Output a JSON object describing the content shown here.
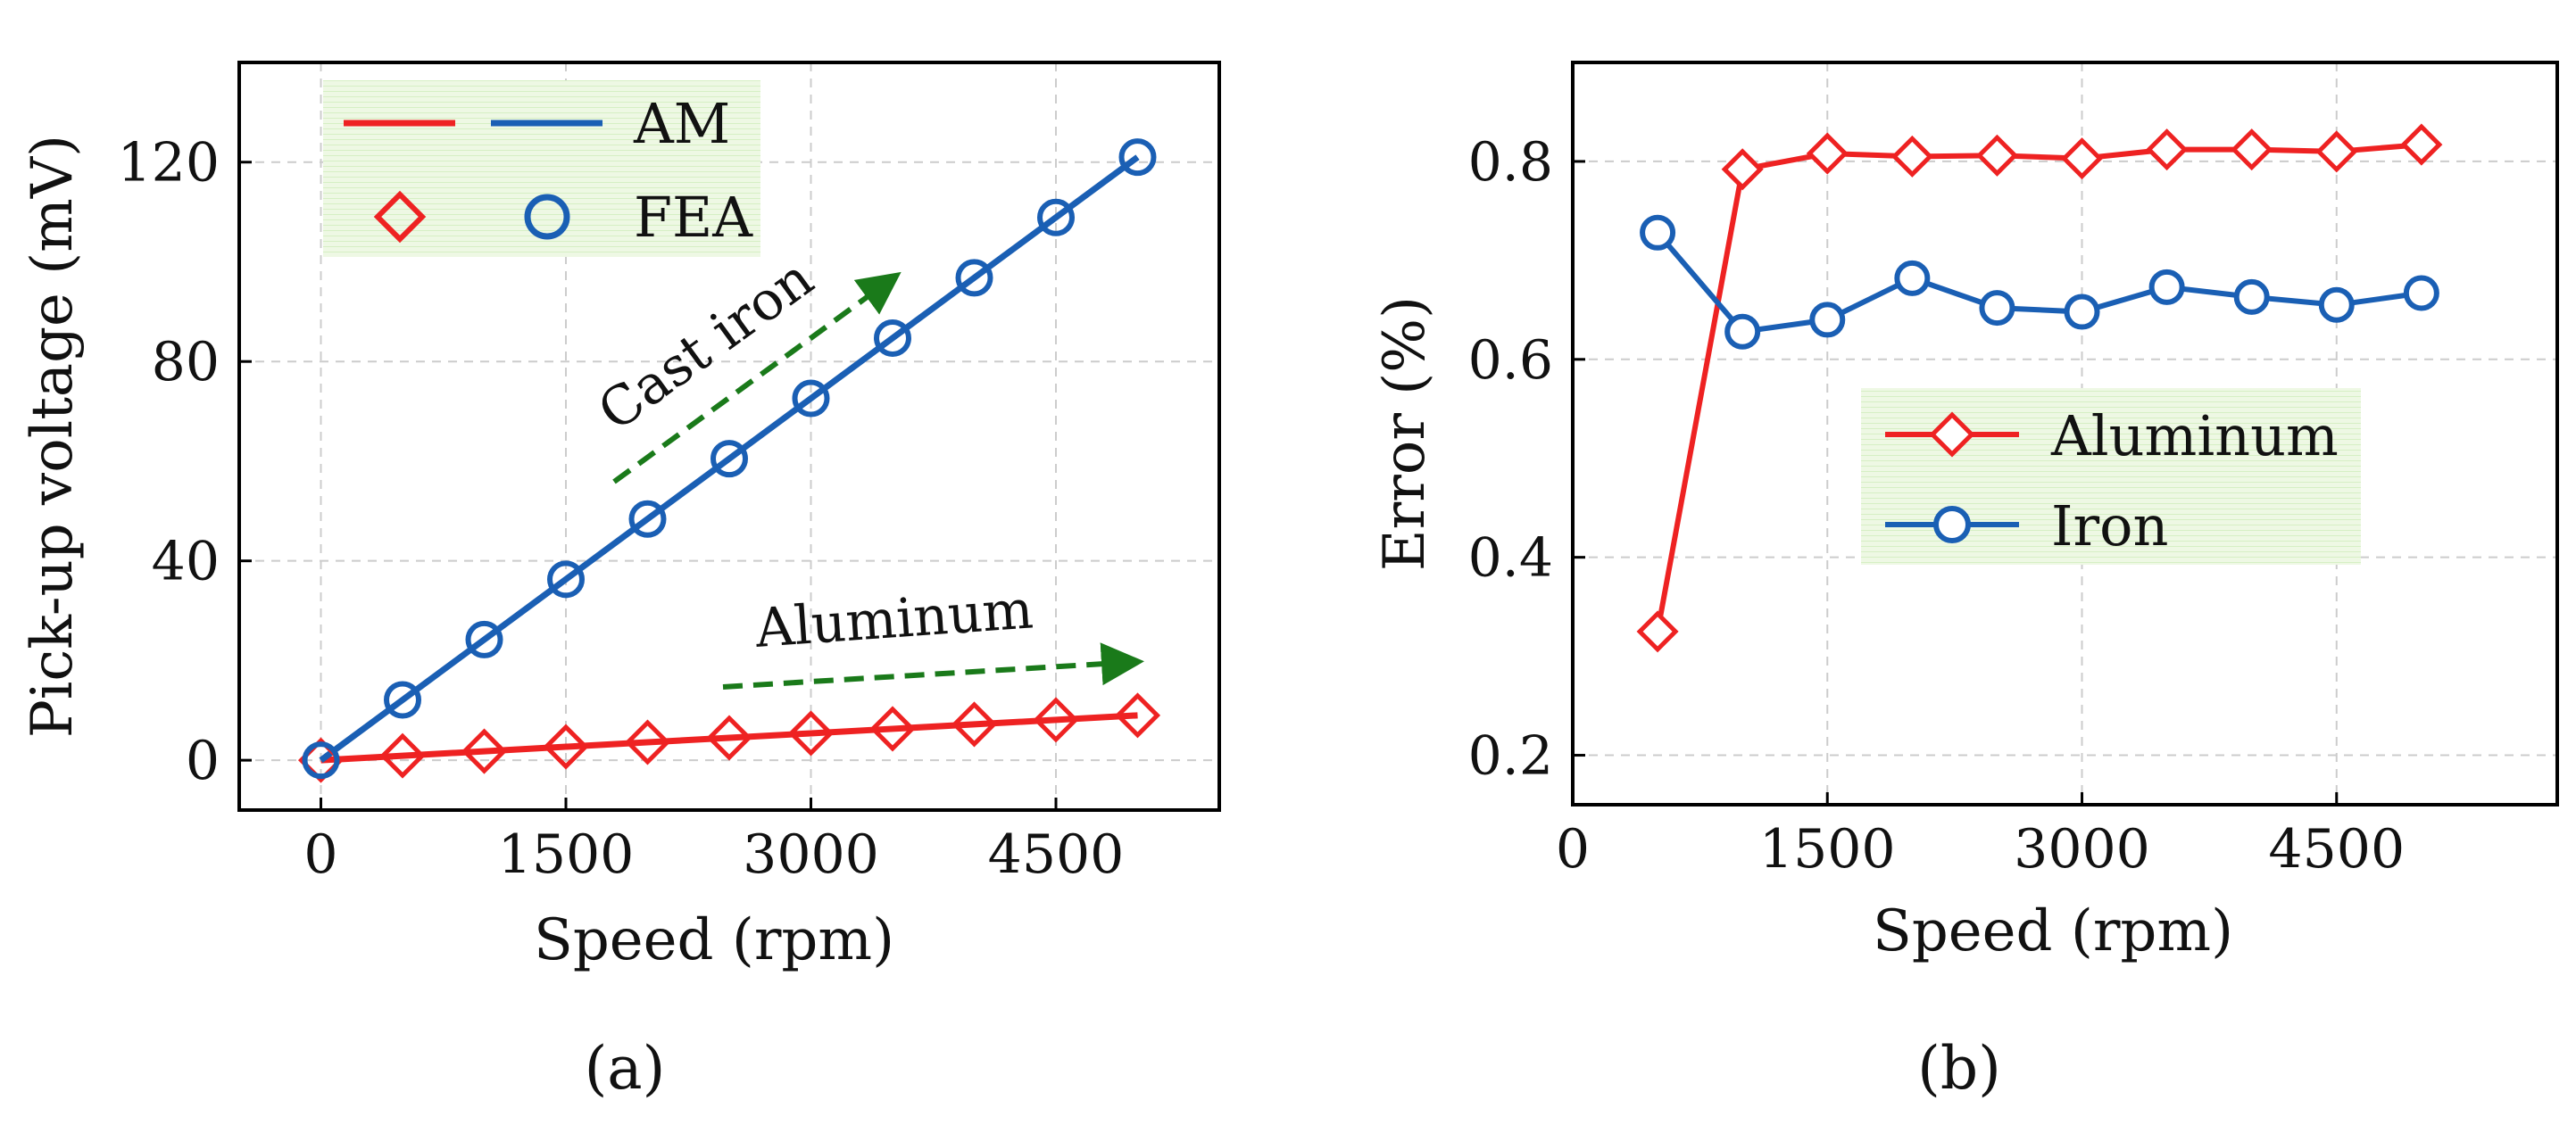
{
  "figure": {
    "caption_a": "(a)",
    "caption_b": "(b)"
  },
  "chart_data": [
    {
      "id": "a",
      "type": "line",
      "title": "",
      "xlabel": "Speed (rpm)",
      "ylabel": "Pick-up voltage (mV)",
      "xlim": [
        -500,
        5500
      ],
      "ylim": [
        -10,
        140
      ],
      "xticks": [
        0,
        1500,
        3000,
        4500
      ],
      "yticks": [
        0,
        40,
        80,
        120
      ],
      "grid": true,
      "legend_position": "top-left",
      "legend": {
        "row1_label": "AM",
        "row2_label": "FEA",
        "colors": [
          "#ee2222",
          "#1a5fb4"
        ]
      },
      "x": [
        0,
        500,
        1000,
        1500,
        2000,
        2500,
        3000,
        3500,
        4000,
        4500,
        5000
      ],
      "series": [
        {
          "name": "Aluminum AM",
          "kind": "line",
          "color": "#ee2222",
          "values": [
            0,
            0.9,
            1.8,
            2.7,
            3.6,
            4.5,
            5.4,
            6.3,
            7.2,
            8.1,
            9.0
          ]
        },
        {
          "name": "Aluminum FEA",
          "kind": "marker-diamond",
          "color": "#ee2222",
          "values": [
            0,
            0.9,
            1.8,
            2.7,
            3.6,
            4.5,
            5.4,
            6.3,
            7.2,
            8.1,
            9.0
          ]
        },
        {
          "name": "Cast iron AM",
          "kind": "line",
          "color": "#1a5fb4",
          "values": [
            0,
            12.1,
            24.2,
            36.3,
            48.4,
            60.5,
            72.6,
            84.7,
            96.8,
            108.9,
            121
          ]
        },
        {
          "name": "Cast iron FEA",
          "kind": "marker-circle",
          "color": "#1a5fb4",
          "values": [
            0,
            12.1,
            24.2,
            36.3,
            48.4,
            60.5,
            72.6,
            84.7,
            96.8,
            108.9,
            121
          ]
        }
      ],
      "annotations": [
        {
          "text": "Cast iron",
          "color": "#1a7a1a"
        },
        {
          "text": "Aluminum",
          "color": "#1a7a1a"
        }
      ]
    },
    {
      "id": "b",
      "type": "line",
      "title": "",
      "xlabel": "Speed (rpm)",
      "ylabel": "Error (%)",
      "xlim": [
        0,
        5800
      ],
      "ylim": [
        0.15,
        0.9
      ],
      "xticks": [
        0,
        1500,
        3000,
        4500
      ],
      "yticks": [
        0.2,
        0.4,
        0.6,
        0.8
      ],
      "grid": true,
      "legend_position": "center-right",
      "x": [
        500,
        1000,
        1500,
        2000,
        2500,
        3000,
        3500,
        4000,
        4500,
        5000
      ],
      "series": [
        {
          "name": "Aluminum",
          "marker": "diamond",
          "color": "#ee2222",
          "values": [
            0.325,
            0.792,
            0.808,
            0.805,
            0.806,
            0.803,
            0.812,
            0.812,
            0.81,
            0.817
          ]
        },
        {
          "name": "Iron",
          "marker": "circle",
          "color": "#1a5fb4",
          "values": [
            0.728,
            0.628,
            0.64,
            0.682,
            0.652,
            0.648,
            0.673,
            0.663,
            0.655,
            0.667
          ]
        }
      ]
    }
  ]
}
